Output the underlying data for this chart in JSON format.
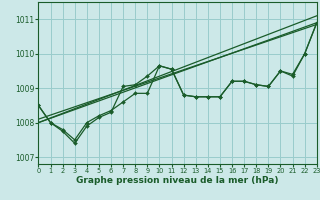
{
  "xlabel": "Graphe pression niveau de la mer (hPa)",
  "background_color": "#cce8e8",
  "grid_color": "#99cccc",
  "line_color": "#1a5c2a",
  "xlim": [
    0,
    23
  ],
  "ylim": [
    1006.8,
    1011.5
  ],
  "yticks": [
    1007,
    1008,
    1009,
    1010,
    1011
  ],
  "xticks": [
    0,
    1,
    2,
    3,
    4,
    5,
    6,
    7,
    8,
    9,
    10,
    11,
    12,
    13,
    14,
    15,
    16,
    17,
    18,
    19,
    20,
    21,
    22,
    23
  ],
  "series": [
    {
      "x": [
        0,
        23
      ],
      "y": [
        1008.0,
        1011.1
      ]
    },
    {
      "x": [
        0,
        23
      ],
      "y": [
        1008.0,
        1010.9
      ]
    },
    {
      "x": [
        0,
        23
      ],
      "y": [
        1008.1,
        1010.85
      ]
    },
    {
      "x": [
        0,
        1,
        2,
        3,
        4,
        5,
        6,
        7,
        8,
        9,
        10,
        11,
        12,
        13,
        14,
        15,
        16,
        17,
        18,
        19,
        20,
        21,
        22,
        23
      ],
      "y": [
        1008.5,
        1008.0,
        1007.75,
        1007.4,
        1007.9,
        1008.15,
        1008.3,
        1009.05,
        1009.1,
        1009.35,
        1009.65,
        1009.55,
        1008.8,
        1008.75,
        1008.75,
        1008.75,
        1009.2,
        1009.2,
        1009.1,
        1009.05,
        1009.5,
        1009.4,
        1010.0,
        1010.9
      ]
    },
    {
      "x": [
        0,
        1,
        2,
        3,
        4,
        5,
        6,
        7,
        8,
        9,
        10,
        11,
        12,
        13,
        14,
        15,
        16,
        17,
        18,
        19,
        20,
        21,
        22,
        23
      ],
      "y": [
        1008.5,
        1008.0,
        1007.8,
        1007.5,
        1008.0,
        1008.2,
        1008.35,
        1008.6,
        1008.85,
        1008.85,
        1009.65,
        1009.55,
        1008.8,
        1008.75,
        1008.75,
        1008.75,
        1009.2,
        1009.2,
        1009.1,
        1009.05,
        1009.5,
        1009.35,
        1010.0,
        1010.9
      ]
    }
  ],
  "line_series_indices": [
    0,
    1,
    2
  ],
  "marker_series_indices": [
    3,
    4
  ]
}
